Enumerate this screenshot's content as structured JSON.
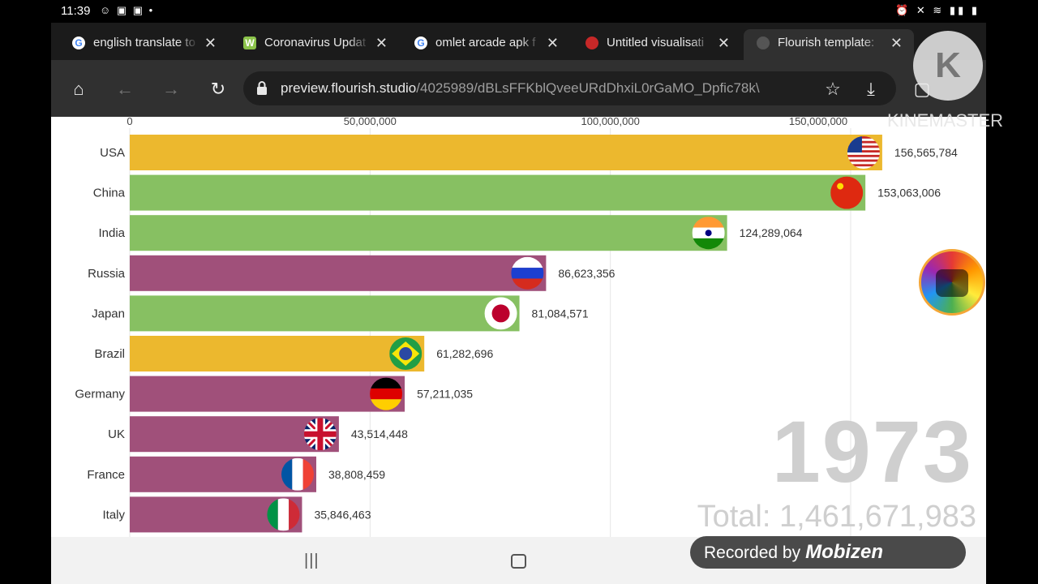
{
  "status_bar": {
    "time": "11:39",
    "left_icons": "☺ ▣ ▣ •",
    "right_icons": "⏰ ✕ ≋ ▮▮ ▮"
  },
  "tabs": [
    {
      "label": "english translate to",
      "favicon": "google-icon",
      "favicon_text": "G"
    },
    {
      "label": "Coronavirus Updat",
      "favicon": "worldometer-icon",
      "favicon_text": "W"
    },
    {
      "label": "omlet arcade apk f",
      "favicon": "google-icon",
      "favicon_text": "G"
    },
    {
      "label": "Untitled visualisati",
      "favicon": "flourish-red-icon",
      "favicon_text": "•"
    },
    {
      "label": "Flourish template: ",
      "favicon": "globe-icon",
      "favicon_text": "•"
    }
  ],
  "toolbar": {
    "url_host": "preview.flourish.studio",
    "url_path": "/4025989/dBLsFFKblQveeURdDhxiL0rGaMO_Dpfic78k\\"
  },
  "chart_data": {
    "type": "bar",
    "orientation": "horizontal",
    "axis_ticks": [
      {
        "value": 0,
        "label": "0"
      },
      {
        "value": 50000000,
        "label": "50,000,000"
      },
      {
        "value": 100000000,
        "label": "100,000,000"
      },
      {
        "value": 150000000,
        "label": "150,000,000"
      }
    ],
    "xlim": [
      0,
      150000000
    ],
    "grid": true,
    "bars": [
      {
        "category": "USA",
        "value": 156565784,
        "value_label": "156,565,784",
        "color": "#ecb82e",
        "flag": "usa-flag"
      },
      {
        "category": "China",
        "value": 153063006,
        "value_label": "153,063,006",
        "color": "#87c062",
        "flag": "china-flag"
      },
      {
        "category": "India",
        "value": 124289064,
        "value_label": "124,289,064",
        "color": "#87c062",
        "flag": "india-flag"
      },
      {
        "category": "Russia",
        "value": 86623356,
        "value_label": "86,623,356",
        "color": "#a0507a",
        "flag": "russia-flag"
      },
      {
        "category": "Japan",
        "value": 81084571,
        "value_label": "81,084,571",
        "color": "#87c062",
        "flag": "japan-flag"
      },
      {
        "category": "Brazil",
        "value": 61282696,
        "value_label": "61,282,696",
        "color": "#ecb82e",
        "flag": "brazil-flag"
      },
      {
        "category": "Germany",
        "value": 57211035,
        "value_label": "57,211,035",
        "color": "#a0507a",
        "flag": "germany-flag"
      },
      {
        "category": "UK",
        "value": 43514448,
        "value_label": "43,514,448",
        "color": "#a0507a",
        "flag": "uk-flag"
      },
      {
        "category": "France",
        "value": 38808459,
        "value_label": "38,808,459",
        "color": "#a0507a",
        "flag": "france-flag"
      },
      {
        "category": "Italy",
        "value": 35846463,
        "value_label": "35,846,463",
        "color": "#a0507a",
        "flag": "italy-flag"
      }
    ],
    "year": "1973",
    "total_label": "Total: 1,461,671,983"
  },
  "overlays": {
    "kinemaster_logo_letter": "K",
    "kinemaster_text": "KINEMASTER",
    "recorded_by": "Recorded by",
    "recorded_brand": "Mobizen"
  }
}
